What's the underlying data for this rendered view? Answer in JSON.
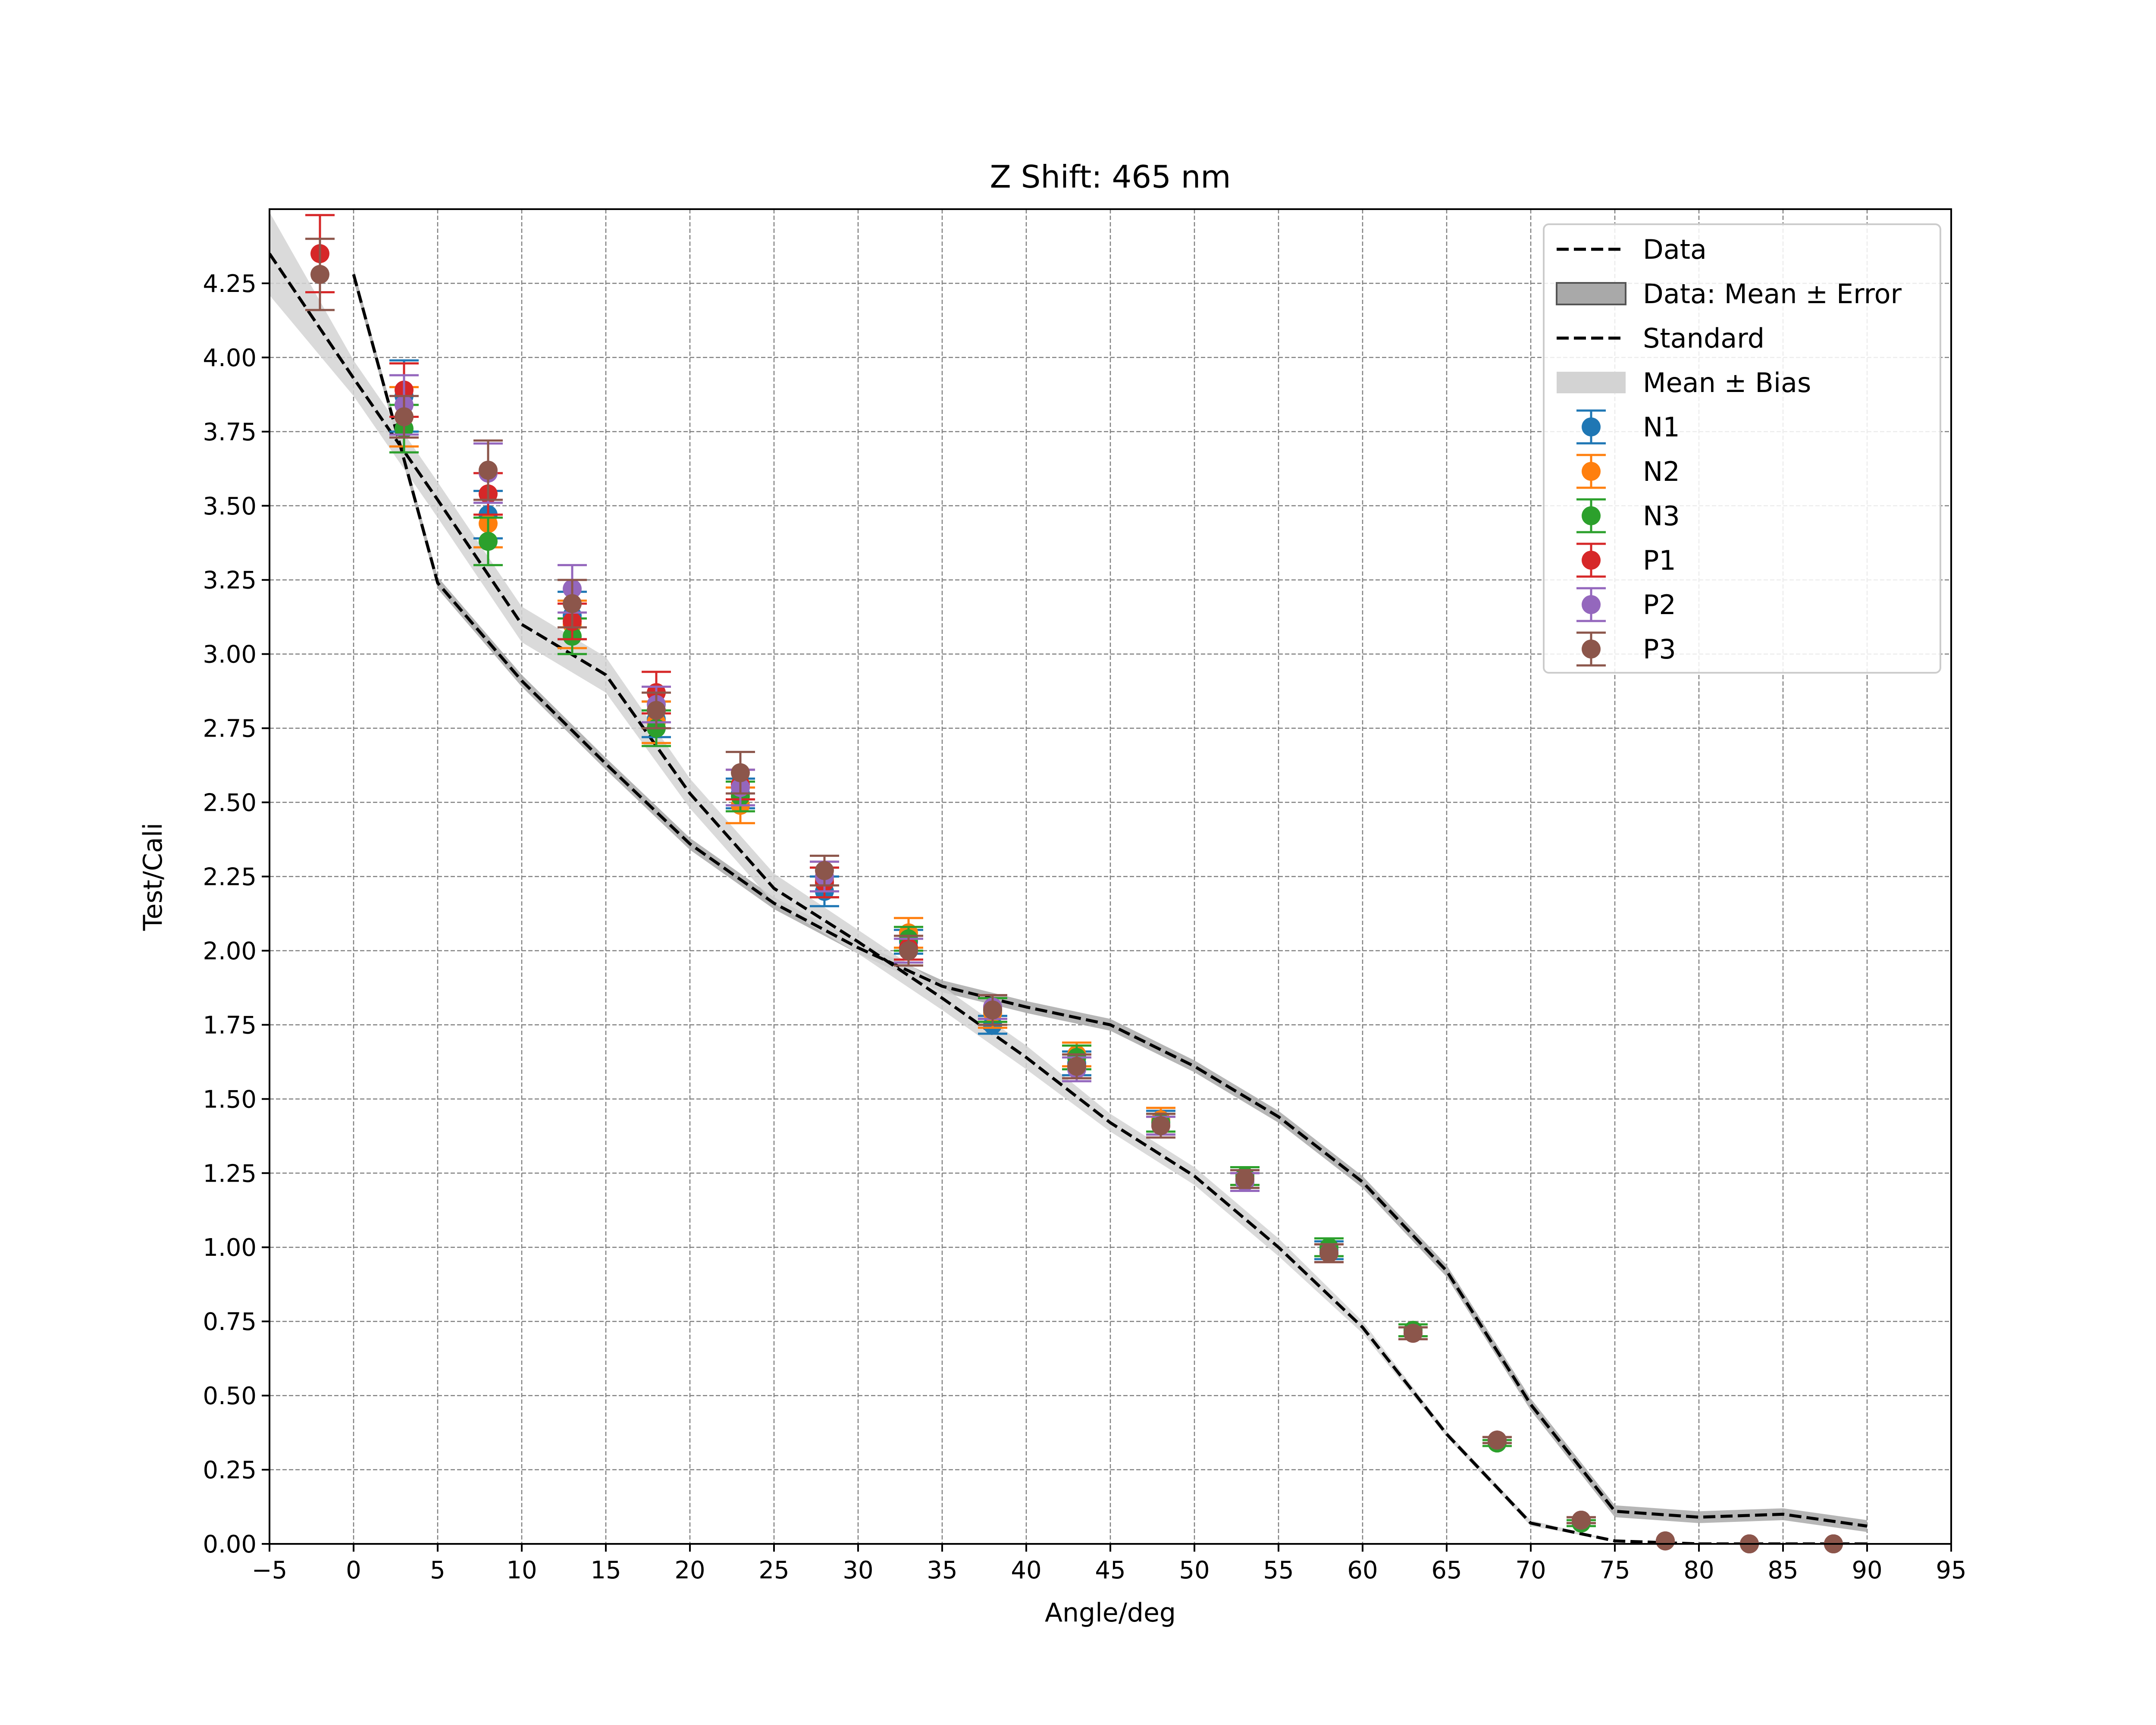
{
  "chart_data": {
    "type": "line",
    "title": "Z Shift: 465 nm",
    "xlabel": "Angle/deg",
    "ylabel": "Test/Cali",
    "xlim": [
      -5,
      95
    ],
    "ylim": [
      0,
      4.5
    ],
    "xticks": [
      "−5",
      "0",
      "5",
      "10",
      "15",
      "20",
      "25",
      "30",
      "35",
      "40",
      "45",
      "50",
      "55",
      "60",
      "65",
      "70",
      "75",
      "80",
      "85",
      "90",
      "95"
    ],
    "yticks": [
      "0.00",
      "0.25",
      "0.50",
      "0.75",
      "1.00",
      "1.25",
      "1.50",
      "1.75",
      "2.00",
      "2.25",
      "2.50",
      "2.75",
      "3.00",
      "3.25",
      "3.50",
      "3.75",
      "4.00",
      "4.25"
    ],
    "grid": true,
    "legend_position": "top-right",
    "legend": [
      "Data",
      "Data: Mean ± Error",
      "Standard",
      "Mean ± Bias",
      "N1",
      "N2",
      "N3",
      "P1",
      "P2",
      "P3"
    ],
    "lines": [
      {
        "name": "Data",
        "style": "dashed",
        "color": "#000000",
        "band_label": "Data: Mean ± Error",
        "band_color": "#a9a9a9",
        "x": [
          0,
          5,
          10,
          15,
          20,
          25,
          30,
          35,
          40,
          45,
          50,
          55,
          60,
          65,
          70,
          75,
          80,
          85,
          90
        ],
        "y": [
          4.28,
          3.24,
          2.91,
          2.63,
          2.36,
          2.16,
          2.01,
          1.88,
          1.81,
          1.75,
          1.61,
          1.44,
          1.22,
          0.92,
          0.47,
          0.11,
          0.09,
          0.1,
          0.06
        ],
        "err": [
          0.02,
          0.02,
          0.02,
          0.02,
          0.02,
          0.02,
          0.02,
          0.02,
          0.02,
          0.02,
          0.02,
          0.02,
          0.02,
          0.02,
          0.02,
          0.02,
          0.02,
          0.02,
          0.02
        ]
      },
      {
        "name": "Standard",
        "style": "dashed",
        "color": "#000000",
        "band_label": "Mean ± Bias",
        "band_color": "#d3d3d3",
        "x": [
          -5,
          0,
          5,
          10,
          15,
          20,
          25,
          30,
          35,
          40,
          45,
          50,
          55,
          60,
          65,
          70,
          75,
          80,
          85,
          90
        ],
        "y": [
          4.35,
          3.93,
          3.52,
          3.1,
          2.93,
          2.53,
          2.21,
          2.03,
          1.84,
          1.64,
          1.42,
          1.24,
          1.0,
          0.73,
          0.37,
          0.07,
          0.01,
          0.0,
          0.0,
          0.0
        ],
        "err": [
          0.14,
          0.06,
          0.06,
          0.06,
          0.06,
          0.05,
          0.05,
          0.04,
          0.04,
          0.04,
          0.03,
          0.03,
          0.03,
          0.02,
          0.01,
          0.01,
          0.0,
          0.0,
          0.0,
          0.0
        ]
      }
    ],
    "series": [
      {
        "name": "N1",
        "color": "#1f77b4",
        "x": [
          3,
          8,
          13,
          18,
          23,
          28,
          33,
          38,
          43,
          48,
          53,
          58,
          63,
          68,
          73,
          78,
          83,
          88
        ],
        "y": [
          3.87,
          3.47,
          3.13,
          2.78,
          2.53,
          2.2,
          2.03,
          1.75,
          1.62,
          1.42,
          1.23,
          0.99,
          0.72,
          0.35,
          0.08,
          0.01,
          0.0,
          0.0
        ],
        "err": [
          0.12,
          0.08,
          0.08,
          0.06,
          0.05,
          0.05,
          0.04,
          0.03,
          0.04,
          0.04,
          0.03,
          0.03,
          0.02,
          0.01,
          0.01,
          0.0,
          0.0,
          0.0
        ]
      },
      {
        "name": "N2",
        "color": "#ff7f0e",
        "x": [
          3,
          8,
          13,
          18,
          23,
          28,
          33,
          38,
          43,
          48,
          53,
          58,
          63,
          68,
          73,
          78,
          83,
          88
        ],
        "y": [
          3.8,
          3.44,
          3.1,
          2.77,
          2.49,
          2.24,
          2.06,
          1.79,
          1.65,
          1.43,
          1.24,
          0.98,
          0.72,
          0.35,
          0.08,
          0.01,
          0.0,
          0.0
        ],
        "err": [
          0.1,
          0.08,
          0.08,
          0.07,
          0.06,
          0.06,
          0.05,
          0.05,
          0.04,
          0.04,
          0.03,
          0.03,
          0.02,
          0.01,
          0.01,
          0.0,
          0.0,
          0.0
        ]
      },
      {
        "name": "N3",
        "color": "#2ca02c",
        "x": [
          3,
          8,
          13,
          18,
          23,
          28,
          33,
          38,
          43,
          48,
          53,
          58,
          63,
          68,
          73,
          78,
          83,
          88
        ],
        "y": [
          3.76,
          3.38,
          3.06,
          2.75,
          2.52,
          2.23,
          2.04,
          1.8,
          1.64,
          1.42,
          1.24,
          1.0,
          0.72,
          0.34,
          0.07,
          0.01,
          0.0,
          0.0
        ],
        "err": [
          0.08,
          0.08,
          0.06,
          0.06,
          0.05,
          0.05,
          0.04,
          0.04,
          0.04,
          0.03,
          0.03,
          0.03,
          0.02,
          0.01,
          0.01,
          0.0,
          0.0,
          0.0
        ]
      },
      {
        "name": "P1",
        "color": "#d62728",
        "x": [
          -2,
          3,
          8,
          13,
          18,
          23,
          28,
          33,
          38,
          43,
          48,
          53,
          58,
          63,
          68,
          73,
          78,
          83,
          88
        ],
        "y": [
          4.35,
          3.89,
          3.54,
          3.11,
          2.87,
          2.56,
          2.23,
          2.01,
          1.81,
          1.61,
          1.41,
          1.22,
          0.98,
          0.71,
          0.35,
          0.08,
          0.01,
          0.0,
          0.0
        ],
        "err": [
          0.13,
          0.09,
          0.07,
          0.06,
          0.07,
          0.05,
          0.05,
          0.04,
          0.04,
          0.04,
          0.03,
          0.03,
          0.03,
          0.02,
          0.01,
          0.01,
          0.0,
          0.0,
          0.0
        ]
      },
      {
        "name": "P2",
        "color": "#9467bd",
        "x": [
          3,
          8,
          13,
          18,
          23,
          28,
          33,
          38,
          43,
          48,
          53,
          58,
          63,
          68,
          73,
          78,
          83,
          88
        ],
        "y": [
          3.84,
          3.61,
          3.22,
          2.83,
          2.55,
          2.25,
          2.0,
          1.81,
          1.6,
          1.41,
          1.22,
          0.98,
          0.71,
          0.35,
          0.08,
          0.01,
          0.0,
          0.0
        ],
        "err": [
          0.1,
          0.1,
          0.08,
          0.06,
          0.06,
          0.05,
          0.04,
          0.04,
          0.04,
          0.03,
          0.03,
          0.03,
          0.02,
          0.01,
          0.01,
          0.0,
          0.0,
          0.0
        ]
      },
      {
        "name": "P3",
        "color": "#8c564b",
        "x": [
          -2,
          3,
          8,
          13,
          18,
          23,
          28,
          33,
          38,
          43,
          48,
          53,
          58,
          63,
          68,
          73,
          78,
          83,
          88
        ],
        "y": [
          4.28,
          3.8,
          3.62,
          3.17,
          2.81,
          2.6,
          2.27,
          2.0,
          1.8,
          1.61,
          1.41,
          1.23,
          0.98,
          0.71,
          0.35,
          0.08,
          0.01,
          0.0,
          0.0
        ],
        "err": [
          0.12,
          0.07,
          0.1,
          0.08,
          0.06,
          0.07,
          0.05,
          0.05,
          0.05,
          0.04,
          0.04,
          0.03,
          0.03,
          0.02,
          0.01,
          0.01,
          0.0,
          0.0,
          0.0
        ]
      }
    ]
  }
}
